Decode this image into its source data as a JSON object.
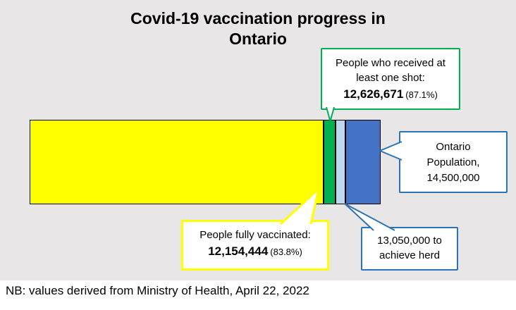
{
  "title": {
    "line1": "Covid-19 vaccination progress in",
    "line2": "Ontario"
  },
  "footnote": "NB: values derived from Ministry of Health, April 22, 2022",
  "colors": {
    "background": "#E8E6E6",
    "fully_vaccinated_fill": "#FFFF00",
    "one_shot_fill": "#00B050",
    "herd_gap_fill": "#BDD7EE",
    "population_fill": "#4472C4",
    "callout_blue_border": "#2E74B5",
    "callout_green_border": "#00B050",
    "callout_yellow_border": "#FFFF00",
    "bar_border": "#000000"
  },
  "callouts": {
    "one_shot": {
      "line1": "People who received at",
      "line2": "least one shot:",
      "value": "12,626,671",
      "suffix": "(87.1%)"
    },
    "fully_vaccinated": {
      "line1": "People fully vaccinated:",
      "value": "12,154,444",
      "suffix": "(83.8%)"
    },
    "population": {
      "line1": "Ontario",
      "line2": "Population,",
      "line3": "14,500,000"
    },
    "herd": {
      "line1": "13,050,000 to",
      "line2": "achieve herd"
    }
  },
  "chart_data": {
    "type": "bar",
    "subtype": "stacked-proportional-horizontal",
    "title": "Covid-19 vaccination progress in Ontario",
    "total": 14500000,
    "cumulative": true,
    "series": [
      {
        "name": "People fully vaccinated",
        "value": 12154444,
        "percent_of_population": 83.8,
        "color": "#FFFF00"
      },
      {
        "name": "People who received at least one shot",
        "value": 12626671,
        "percent_of_population": 87.1,
        "color": "#00B050"
      },
      {
        "name": "Herd immunity threshold",
        "value": 13050000,
        "color": "#BDD7EE"
      },
      {
        "name": "Ontario population",
        "value": 14500000,
        "color": "#4472C4"
      }
    ],
    "annotations": [
      "People who received at least one shot: 12,626,671 (87.1%)",
      "People fully vaccinated: 12,154,444 (83.8%)",
      "Ontario Population, 14,500,000",
      "13,050,000 to achieve herd"
    ],
    "legend": "none",
    "axes": "none",
    "source_note": "NB: values derived from Ministry of Health, April 22, 2022"
  }
}
